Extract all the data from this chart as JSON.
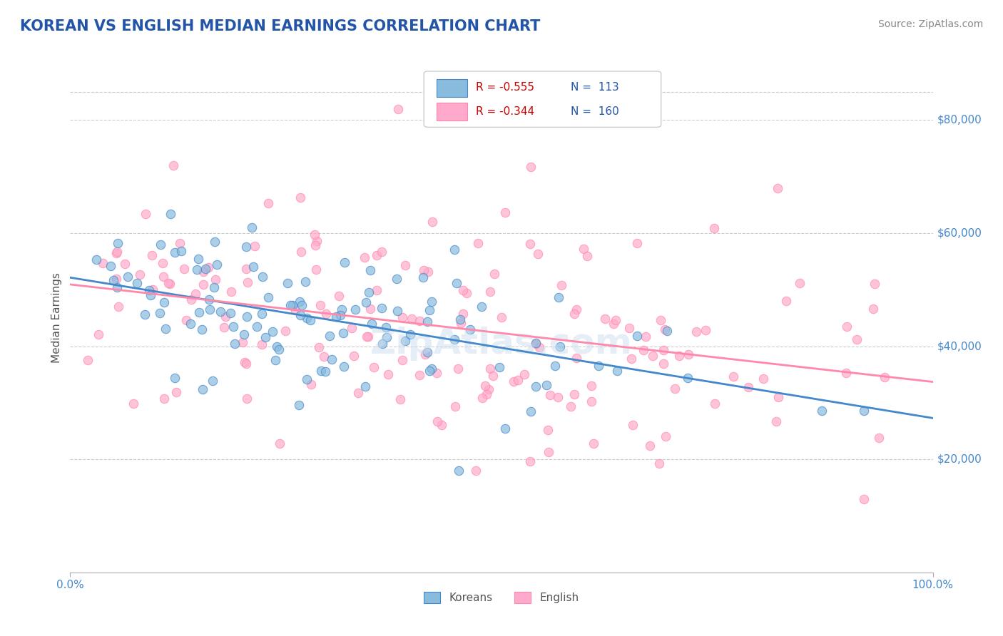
{
  "title": "KOREAN VS ENGLISH MEDIAN EARNINGS CORRELATION CHART",
  "title_color": "#2255aa",
  "title_fontsize": 15,
  "source_text": "Source: ZipAtlas.com",
  "xlabel": "",
  "ylabel": "Median Earnings",
  "ylabel_color": "#555555",
  "xmin": 0.0,
  "xmax": 1.0,
  "ymin": 0,
  "ymax": 90000,
  "yticks": [
    20000,
    40000,
    60000,
    80000
  ],
  "ytick_labels": [
    "$20,000",
    "$40,000",
    "$60,000",
    "$80,000"
  ],
  "xtick_labels": [
    "0.0%",
    "100.0%"
  ],
  "background_color": "#ffffff",
  "grid_color": "#cccccc",
  "legend_R1": "R = -0.555",
  "legend_N1": "N =  113",
  "legend_R2": "R = -0.344",
  "legend_N2": "N =  160",
  "legend_color_korean": "#aaccee",
  "legend_color_english": "#ffaabb",
  "korean_color": "#88bbdd",
  "english_color": "#ffaacc",
  "korean_line_color": "#4488cc",
  "english_line_color": "#ff88aa",
  "R_korean": -0.555,
  "N_korean": 113,
  "R_english": -0.344,
  "N_english": 160,
  "marker_size": 80,
  "marker_alpha": 0.7,
  "watermark_text": "ZipAtlas.com",
  "watermark_color": "#ccddee",
  "watermark_fontsize": 36
}
